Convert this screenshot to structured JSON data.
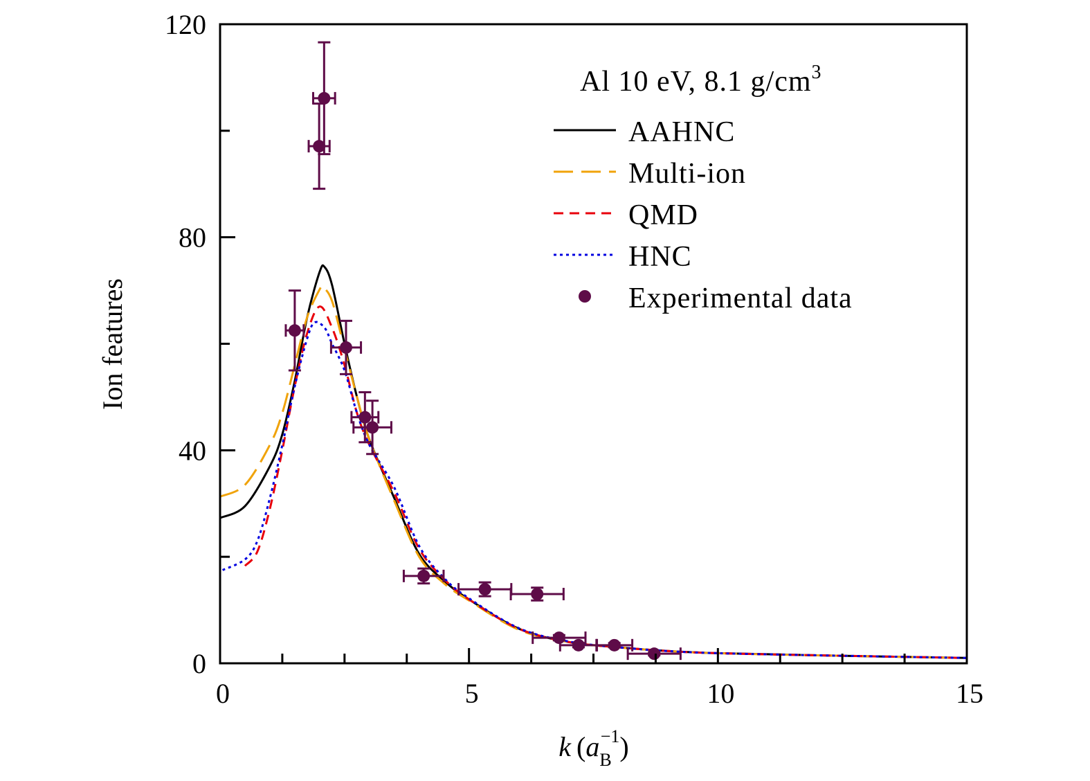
{
  "chart_data": {
    "type": "line",
    "title": "",
    "annotation": "Al 10 eV, 8.1 g/cm",
    "annotation_sup": "3",
    "xlabel": "k",
    "xlabel_unit_base": "a",
    "xlabel_unit_sub": "B",
    "xlabel_unit_sup": "−1",
    "ylabel": "Ion features",
    "xlim": [
      0,
      15
    ],
    "ylim": [
      0,
      120
    ],
    "xticks": [
      0,
      5,
      10,
      15
    ],
    "xtick_labels": [
      "0",
      "5",
      "10",
      "15"
    ],
    "yticks": [
      0,
      40,
      80,
      120
    ],
    "ytick_labels": [
      "0",
      "40",
      "80",
      "120"
    ],
    "x_minor_step": 1.25,
    "y_minor_step": 20,
    "grid": false,
    "legend_position": "top-right",
    "series": [
      {
        "name": "AAHNC",
        "color": "#000000",
        "dash": "solid",
        "x": [
          0,
          0.5,
          1,
          1.25,
          1.5,
          1.75,
          2,
          2.1,
          2.25,
          2.5,
          2.75,
          3,
          3.5,
          4,
          4.5,
          5,
          6,
          7,
          8,
          9,
          10,
          12,
          15
        ],
        "y": [
          27.3,
          29.5,
          37,
          43,
          53,
          65,
          73.5,
          74.4,
          71,
          60,
          50,
          42,
          31,
          20.5,
          15.5,
          12,
          6.5,
          4,
          3,
          2.3,
          1.9,
          1.5,
          1.0
        ]
      },
      {
        "name": "Multi-ion",
        "color": "#f0a30a",
        "dash": "long-dash",
        "x": [
          0,
          0.5,
          1,
          1.25,
          1.5,
          1.75,
          2,
          2.07,
          2.25,
          2.5,
          2.75,
          3,
          3.5,
          4,
          4.5,
          5,
          6,
          7,
          8,
          9,
          10,
          12,
          15
        ],
        "y": [
          31.3,
          33.5,
          41,
          47,
          56,
          65,
          70.2,
          70.6,
          68,
          59,
          50,
          42,
          30.5,
          20,
          15,
          11.8,
          6.3,
          4,
          3,
          2.3,
          1.9,
          1.5,
          1.0
        ]
      },
      {
        "name": "QMD",
        "color": "#e8000b",
        "dash": "dash",
        "x": [
          0.5,
          0.75,
          1,
          1.25,
          1.5,
          1.75,
          2,
          2.25,
          2.5,
          2.75,
          3,
          3.5,
          4,
          4.5,
          5,
          6,
          7,
          8,
          9,
          10,
          12,
          15
        ],
        "y": [
          18.3,
          21,
          29,
          40,
          52,
          62,
          67,
          63,
          56,
          47,
          41,
          32,
          21.5,
          15.8,
          12,
          6.5,
          4,
          3,
          2.3,
          1.9,
          1.5,
          1.0
        ]
      },
      {
        "name": "HNC",
        "color": "#0000e0",
        "dash": "dot",
        "x": [
          0.05,
          0.5,
          0.75,
          1,
          1.25,
          1.5,
          1.75,
          1.9,
          2.1,
          2.25,
          2.5,
          2.75,
          3,
          3.5,
          4,
          4.5,
          5,
          6,
          7,
          8,
          9,
          10,
          12,
          15
        ],
        "y": [
          17.5,
          19.5,
          23,
          31,
          41,
          52,
          61,
          64,
          63,
          60,
          55,
          47,
          41,
          33,
          22,
          16,
          12.2,
          6.6,
          4.1,
          3,
          2.3,
          1.9,
          1.5,
          1.0
        ]
      }
    ],
    "experimental": {
      "name": "Experimental data",
      "color": "#5e0c48",
      "points": [
        {
          "x": 1.5,
          "y": 62.5,
          "xerr": 0.18,
          "yerr": 7.5
        },
        {
          "x": 1.99,
          "y": 97.1,
          "xerr": 0.21,
          "yerr": 8.0
        },
        {
          "x": 2.09,
          "y": 106.1,
          "xerr": 0.22,
          "yerr": 10.5
        },
        {
          "x": 2.53,
          "y": 59.3,
          "xerr": 0.3,
          "yerr": 5.0
        },
        {
          "x": 2.91,
          "y": 46.2,
          "xerr": 0.27,
          "yerr": 4.7
        },
        {
          "x": 3.06,
          "y": 44.3,
          "xerr": 0.38,
          "yerr": 5.0
        },
        {
          "x": 4.09,
          "y": 16.4,
          "xerr": 0.4,
          "yerr": 1.4
        },
        {
          "x": 5.32,
          "y": 13.9,
          "xerr": 0.53,
          "yerr": 1.3
        },
        {
          "x": 6.37,
          "y": 13.0,
          "xerr": 0.53,
          "yerr": 1.2
        },
        {
          "x": 6.81,
          "y": 4.8,
          "xerr": 0.53,
          "yerr": 0.5
        },
        {
          "x": 7.2,
          "y": 3.4,
          "xerr": 0.37,
          "yerr": 0.4
        },
        {
          "x": 7.92,
          "y": 3.4,
          "xerr": 0.36,
          "yerr": 0.4
        },
        {
          "x": 8.72,
          "y": 1.8,
          "xerr": 0.53,
          "yerr": 0.3
        }
      ]
    }
  }
}
